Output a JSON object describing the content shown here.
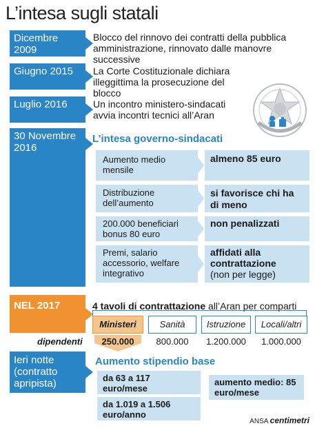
{
  "title": "L’intesa sugli statali",
  "timeline": [
    {
      "date": "Dicembre 2009",
      "text": "Blocco del rinnovo dei contratti della pubblica amministrazione, rinnovato dalle manovre successive"
    },
    {
      "date": "Giugno 2015",
      "text": "La Corte Costituzionale dichiara illeggittima la prosecuzione del blocco"
    },
    {
      "date": "Luglio 2016",
      "text": "Un incontro ministero-sindacati avvia incontri tecnici all’Aran"
    },
    {
      "date": "30 Novembre 2016"
    }
  ],
  "intesa": {
    "title": "L’intesa governo-sindacati",
    "rows": [
      {
        "left": "Aumento medio mensile",
        "right": "almeno 85 euro"
      },
      {
        "left": "Distribuzione dell’aumento",
        "right": "si favorisce chi ha di meno"
      },
      {
        "left": "200.000 beneficiari bonus 80 euro",
        "right": "non penalizzati"
      },
      {
        "left": "Premi, salario accessorio, welfare integrativo",
        "right_bold": "affidati alla contrattazione",
        "right_normal": "(non per legge)"
      }
    ]
  },
  "nel2017": {
    "label": "NEL 2017",
    "text_bold": "4 tavoli di contrattazione",
    "text_normal": " all’Aran per comparti",
    "comparti": [
      "Ministeri",
      "Sanità",
      "Istruzione",
      "Locali/altri"
    ],
    "dipendenti_label": "dipendenti",
    "dipendenti": [
      "250.000",
      "800.000",
      "1.200.000",
      "1.000.000"
    ]
  },
  "ieri": {
    "label": "Ieri notte (contratto apripista)",
    "title": "Aumento stipendio base",
    "box1": "da 63 a 117 euro/mese",
    "box2": "da 1.019 a 1.506 euro/anno",
    "box3": "aumento medio: 85 euro/mese"
  },
  "emblem_text": "REPUBBLICA ITALIANA",
  "footer": {
    "source": "ANSA",
    "brand": "centimetri"
  },
  "colors": {
    "blue": "#2a85c7",
    "light_blue": "#c9e1f1",
    "orange": "#f0922f",
    "light_orange": "#f3c58f"
  }
}
